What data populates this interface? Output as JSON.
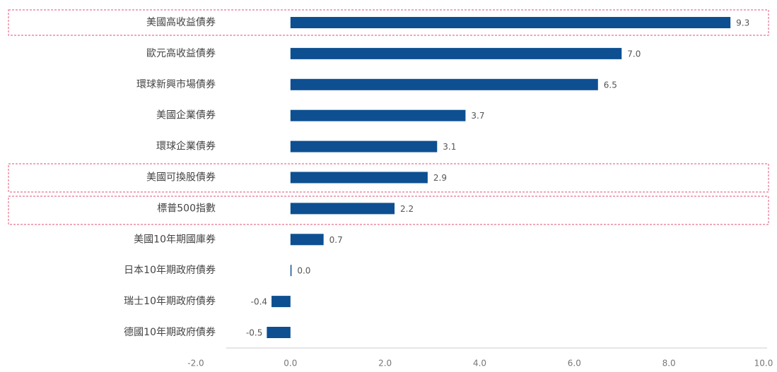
{
  "chart_data": {
    "type": "barh",
    "categories": [
      "美國高收益債券",
      "歐元高收益債券",
      "環球新興市場債券",
      "美國企業債券",
      "環球企業債券",
      "美國可換股債券",
      "標普500指數",
      "美國10年期國庫券",
      "日本10年期政府債券",
      "瑞士10年期政府債券",
      "德國10年期政府債券"
    ],
    "values": [
      9.3,
      7.0,
      6.5,
      3.7,
      3.1,
      2.9,
      2.2,
      0.7,
      0.0,
      -0.4,
      -0.5
    ],
    "value_labels": [
      "9.3",
      "7.0",
      "6.5",
      "3.7",
      "3.1",
      "2.9",
      "2.2",
      "0.7",
      "0.0",
      "-0.4",
      "-0.5"
    ],
    "color": "#0d4f91",
    "xlim": [
      -2,
      10
    ],
    "xticks": [
      {
        "value": -2,
        "label": "-2.0"
      },
      {
        "value": 0,
        "label": "0.0"
      },
      {
        "value": 2,
        "label": "2.0"
      },
      {
        "value": 4,
        "label": "4.0"
      },
      {
        "value": 6,
        "label": "6.0"
      },
      {
        "value": 8,
        "label": "8.0"
      },
      {
        "value": 10,
        "label": "10.0"
      }
    ]
  }
}
